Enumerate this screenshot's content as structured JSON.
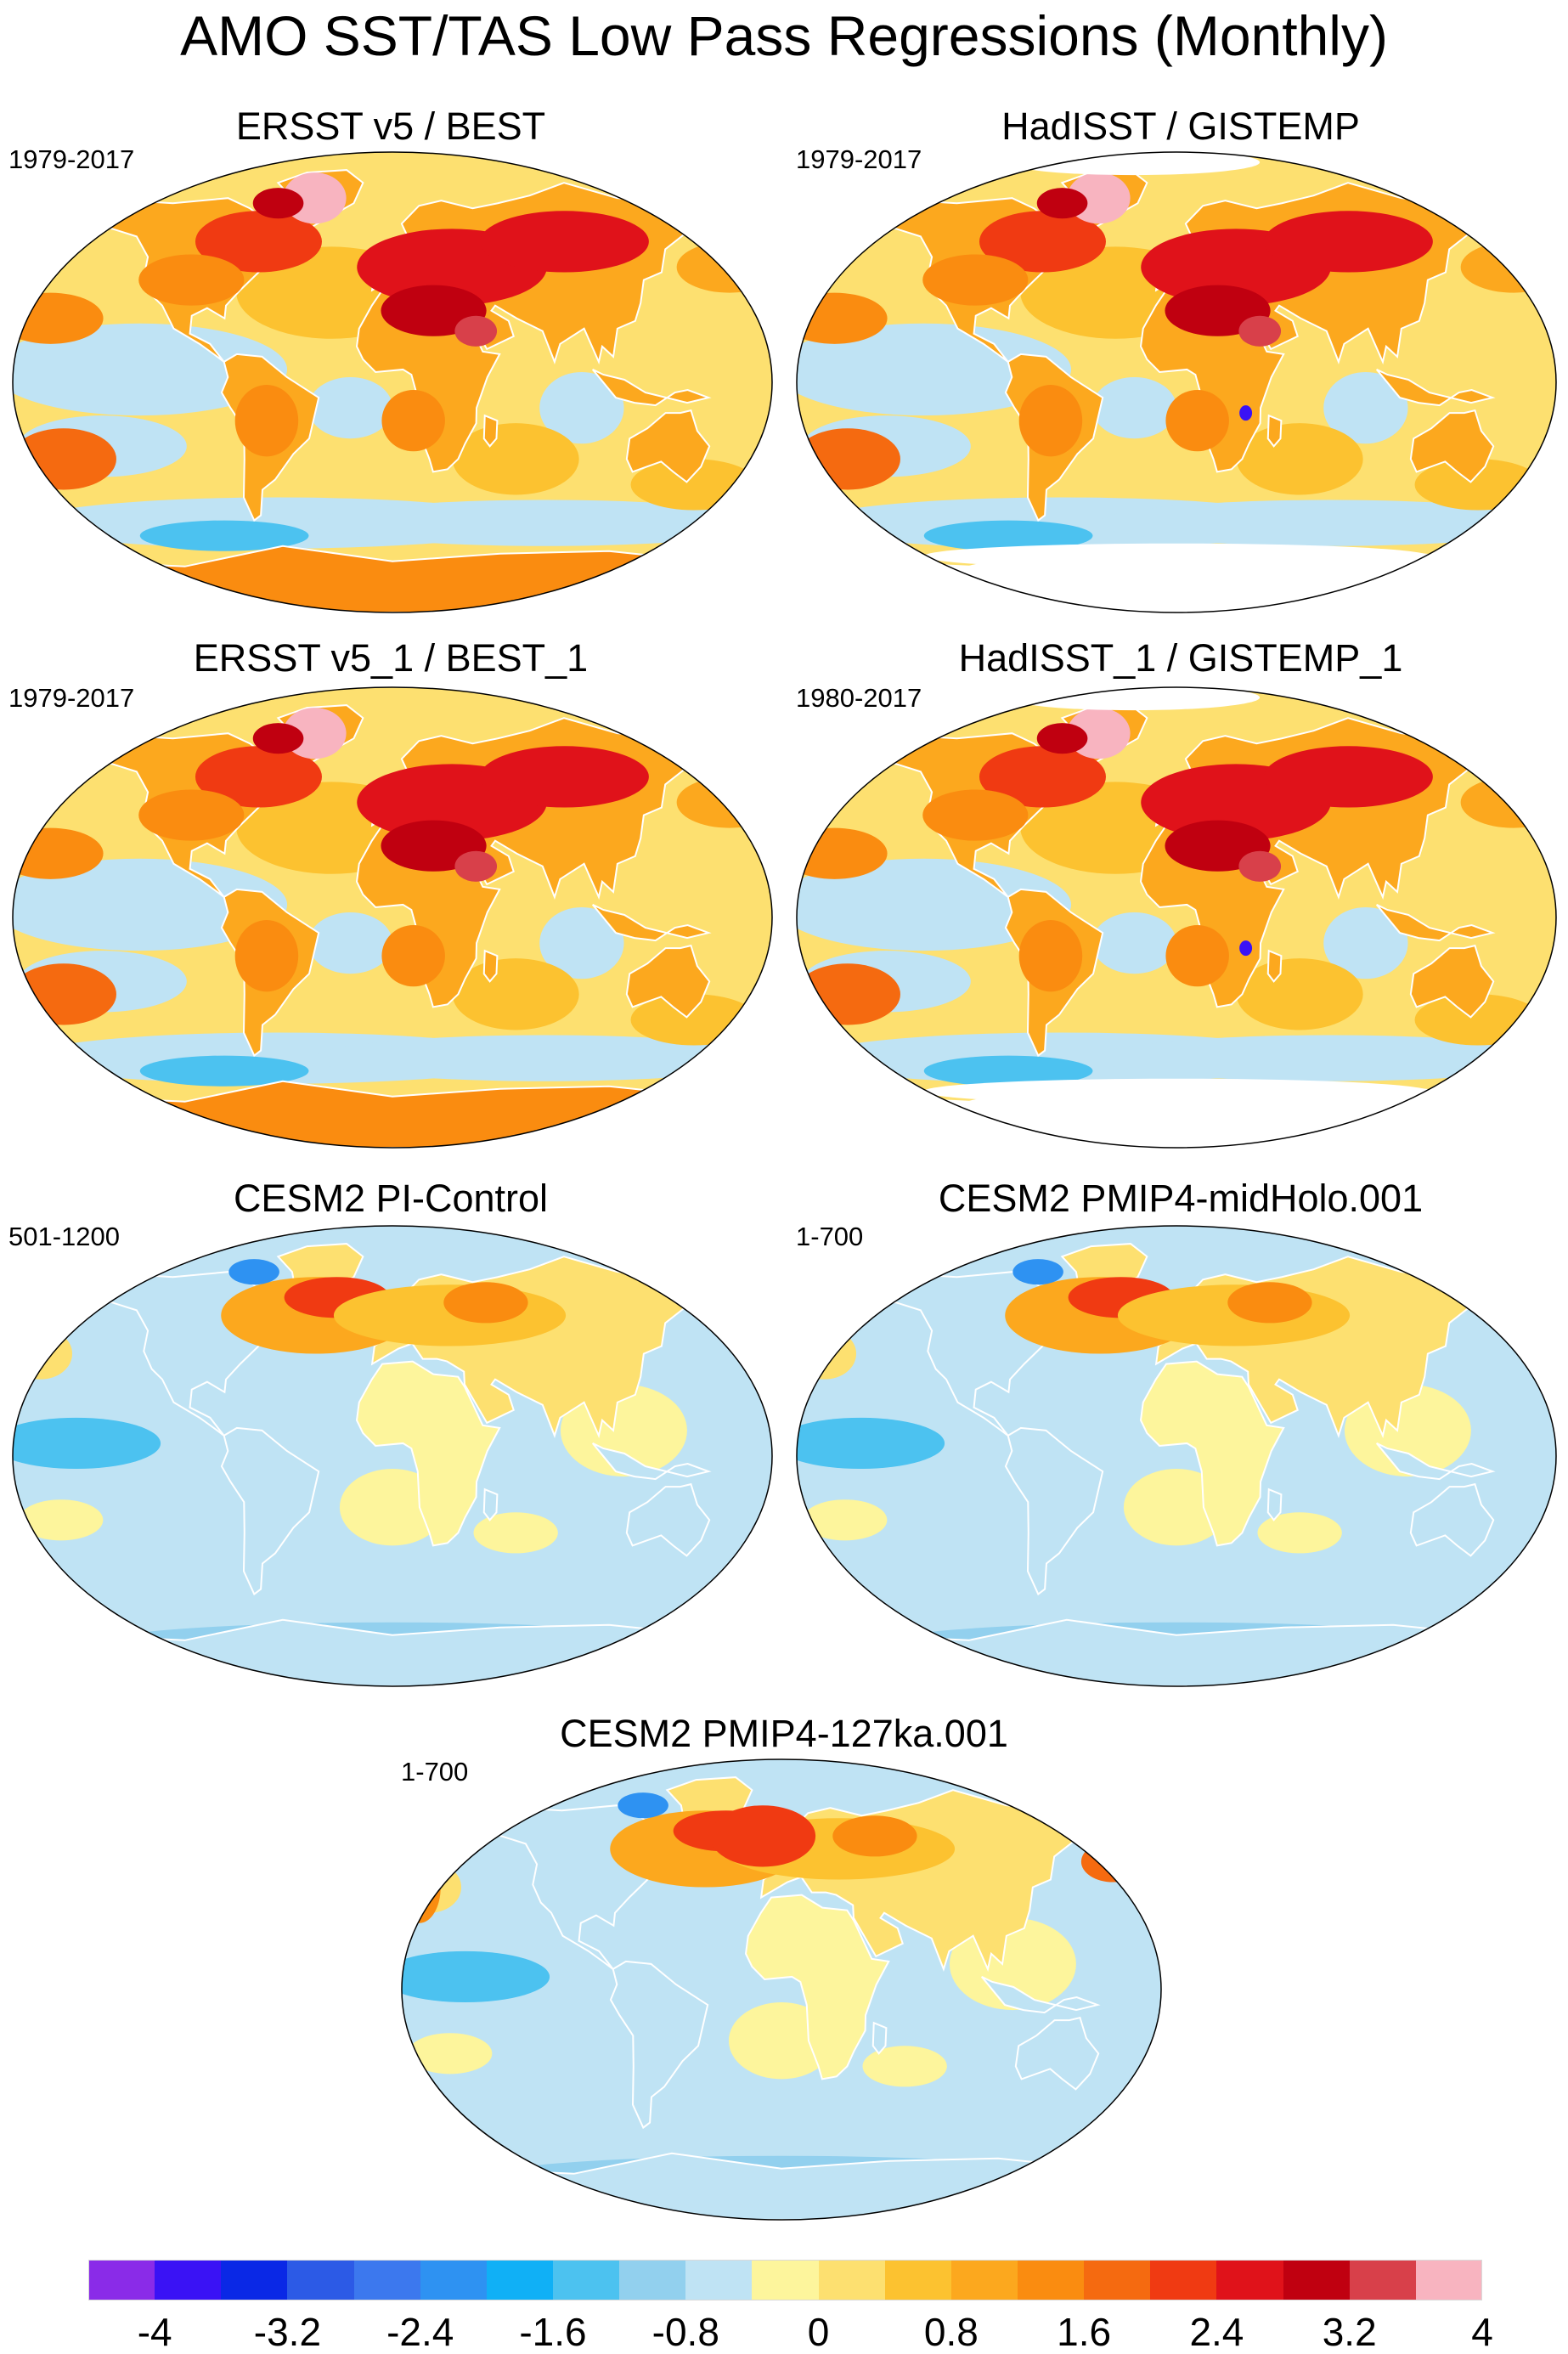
{
  "figure": {
    "title": "AMO SST/TAS Low Pass Regressions (Monthly)"
  },
  "panels": [
    {
      "title": "ERSST v5 / BEST",
      "period": "1979-2017",
      "pattern": "obs",
      "land_gap": false
    },
    {
      "title": "HadISST / GISTEMP",
      "period": "1979-2017",
      "pattern": "obs",
      "land_gap": true
    },
    {
      "title": "ERSST v5_1 / BEST_1",
      "period": "1979-2017",
      "pattern": "obs",
      "land_gap": false
    },
    {
      "title": "HadISST_1 / GISTEMP_1",
      "period": "1980-2017",
      "pattern": "obs",
      "land_gap": true
    },
    {
      "title": "CESM2 PI-Control",
      "period": "501-1200",
      "pattern": "model",
      "land_gap": false
    },
    {
      "title": "CESM2 PMIP4-midHolo.001",
      "period": "1-700",
      "pattern": "model",
      "land_gap": false
    },
    {
      "title": "CESM2 PMIP4-127ka.001",
      "period": "1-700",
      "pattern": "model127",
      "land_gap": false
    }
  ],
  "colorbar": {
    "labels": [
      "-4",
      "-3.2",
      "-2.4",
      "-1.6",
      "-0.8",
      "0",
      "0.8",
      "1.6",
      "2.4",
      "3.2",
      "4"
    ],
    "colors": [
      "#8a2be8",
      "#3a12f5",
      "#0a28e6",
      "#2c5ae6",
      "#3c78ee",
      "#2e92f2",
      "#10b0f6",
      "#4cc2f0",
      "#92d0ee",
      "#bfe3f4",
      "#fdf59c",
      "#fde070",
      "#fcc230",
      "#fca81e",
      "#fa8c10",
      "#f56a10",
      "#f03a12",
      "#e0121a",
      "#c00010",
      "#d8404a",
      "#f8b4c0"
    ]
  },
  "styles": {
    "ocean_outline": "#000000",
    "coastline": "#ffffff",
    "background": "#ffffff"
  }
}
